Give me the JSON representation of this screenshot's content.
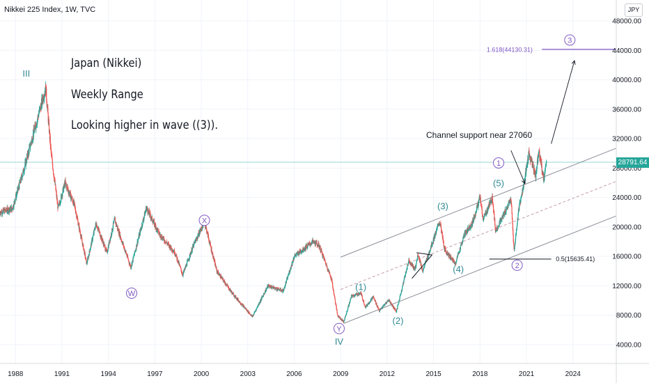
{
  "header": {
    "title": "Nikkei 225 Index, 1W, TVC",
    "currency": "JPY"
  },
  "notes": [
    "Japan (Nikkei)",
    "Weekly Range",
    "Looking higher in wave ((3))."
  ],
  "annotation": "Channel support near 27060",
  "price_tag": "28791.64",
  "colors": {
    "up": "#26a69a",
    "down": "#ef5350",
    "wave_purple": "#7e57c2",
    "wave_teal": "#2f8a94",
    "channel": "#8a8d96",
    "price_line": "#26a69a"
  },
  "chart_data": {
    "type": "candlestick",
    "title": "Nikkei 225 Index, 1W, TVC",
    "ylim": [
      2000,
      50000
    ],
    "xlim": [
      1987.0,
      2026.8
    ],
    "y_ticks": [
      4000,
      8000,
      12000,
      16000,
      20000,
      24000,
      28000,
      32000,
      36000,
      40000,
      44000,
      48000
    ],
    "y_tick_labels": [
      "4000.00",
      "8000.00",
      "12000.00",
      "16000.00",
      "20000.00",
      "24000.00",
      "28000.00",
      "32000.00",
      "36000.00",
      "40000.00",
      "44000.00",
      "48000.00"
    ],
    "x_ticks": [
      1988,
      1991,
      1994,
      1997,
      2000,
      2003,
      2006,
      2009,
      2012,
      2015,
      2018,
      2021,
      2024
    ],
    "x_tick_labels": [
      "1988",
      "1991",
      "1994",
      "1997",
      "2000",
      "2003",
      "2006",
      "2009",
      "2012",
      "2015",
      "2018",
      "2021",
      "2024"
    ],
    "last_price": 28791.64,
    "price_path": [
      [
        1987.0,
        22000
      ],
      [
        1987.8,
        22500
      ],
      [
        1988.5,
        27500
      ],
      [
        1989.2,
        33000
      ],
      [
        1989.95,
        38900
      ],
      [
        1990.3,
        30000
      ],
      [
        1990.75,
        22500
      ],
      [
        1991.2,
        26000
      ],
      [
        1991.8,
        23000
      ],
      [
        1992.6,
        15000
      ],
      [
        1993.2,
        20500
      ],
      [
        1993.9,
        16500
      ],
      [
        1994.4,
        21000
      ],
      [
        1995.45,
        14500
      ],
      [
        1996.45,
        22600
      ],
      [
        1997.3,
        19000
      ],
      [
        1998.3,
        16500
      ],
      [
        1998.8,
        13500
      ],
      [
        1999.5,
        17500
      ],
      [
        2000.2,
        20700
      ],
      [
        2001.0,
        14000
      ],
      [
        2002.0,
        11000
      ],
      [
        2003.3,
        7800
      ],
      [
        2004.3,
        12000
      ],
      [
        2005.3,
        11300
      ],
      [
        2006.0,
        16000
      ],
      [
        2007.2,
        18000
      ],
      [
        2007.6,
        17500
      ],
      [
        2008.4,
        13000
      ],
      [
        2008.8,
        8000
      ],
      [
        2009.2,
        7100
      ],
      [
        2009.7,
        10600
      ],
      [
        2010.3,
        11000
      ],
      [
        2010.6,
        9100
      ],
      [
        2011.1,
        10500
      ],
      [
        2011.5,
        8600
      ],
      [
        2012.1,
        10100
      ],
      [
        2012.6,
        8500
      ],
      [
        2013.4,
        15500
      ],
      [
        2013.8,
        14200
      ],
      [
        2014.0,
        16300
      ],
      [
        2014.3,
        14000
      ],
      [
        2015.4,
        20800
      ],
      [
        2015.7,
        17000
      ],
      [
        2016.4,
        15000
      ],
      [
        2017.0,
        19000
      ],
      [
        2017.5,
        20500
      ],
      [
        2018.0,
        24000
      ],
      [
        2018.2,
        21000
      ],
      [
        2018.8,
        24000
      ],
      [
        2019.0,
        19500
      ],
      [
        2019.5,
        21500
      ],
      [
        2020.0,
        23800
      ],
      [
        2020.2,
        16600
      ],
      [
        2020.5,
        22500
      ],
      [
        2020.9,
        26500
      ],
      [
        2021.15,
        30000
      ],
      [
        2021.6,
        27000
      ],
      [
        2021.8,
        30600
      ],
      [
        2022.1,
        26500
      ],
      [
        2022.3,
        28800
      ]
    ],
    "channel_lines": [
      {
        "style": "solid",
        "from": [
          2009.0,
          15900
        ],
        "to": [
          2026.8,
          30700
        ]
      },
      {
        "style": "dashed",
        "from": [
          2009.0,
          11500
        ],
        "to": [
          2026.8,
          26200
        ]
      },
      {
        "style": "solid",
        "from": [
          2009.2,
          6900
        ],
        "to": [
          2026.8,
          21500
        ]
      }
    ],
    "horizontal_lines": [
      {
        "value": 44130.31,
        "label": "1.618(44130.31)"
      },
      {
        "value": 15635.41,
        "label": "0.5(15635.41)"
      }
    ],
    "wave_labels": [
      {
        "text": "III",
        "x": 1988.7,
        "y": 40800,
        "style": "plain",
        "color": "teal"
      },
      {
        "text": "W",
        "x": 1995.5,
        "y": 11000,
        "style": "circle",
        "color": "purple"
      },
      {
        "text": "X",
        "x": 2000.2,
        "y": 20900,
        "style": "circle",
        "color": "purple"
      },
      {
        "text": "Y",
        "x": 2008.9,
        "y": 6200,
        "style": "circle",
        "color": "purple"
      },
      {
        "text": "IV",
        "x": 2008.9,
        "y": 4400,
        "style": "plain",
        "color": "teal"
      },
      {
        "text": "(1)",
        "x": 2010.3,
        "y": 11800,
        "style": "plain",
        "color": "teal"
      },
      {
        "text": "(2)",
        "x": 2012.7,
        "y": 7200,
        "style": "plain",
        "color": "teal"
      },
      {
        "text": "(3)",
        "x": 2015.6,
        "y": 22800,
        "style": "plain",
        "color": "teal"
      },
      {
        "text": "(4)",
        "x": 2016.6,
        "y": 14200,
        "style": "plain",
        "color": "teal"
      },
      {
        "text": "(5)",
        "x": 2019.2,
        "y": 25900,
        "style": "plain",
        "color": "teal"
      },
      {
        "text": "1",
        "x": 2019.2,
        "y": 28700,
        "style": "circle",
        "color": "purple"
      },
      {
        "text": "2",
        "x": 2020.4,
        "y": 14800,
        "style": "circle",
        "color": "purple"
      },
      {
        "text": "3",
        "x": 2023.8,
        "y": 45400,
        "style": "circle",
        "color": "purple"
      }
    ]
  }
}
